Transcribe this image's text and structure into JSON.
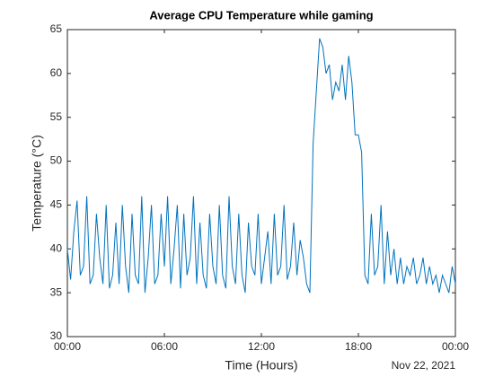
{
  "chart_data": {
    "type": "line",
    "title": "Average CPU Temperature while gaming",
    "xlabel": "Time (Hours)",
    "ylabel": "Temperature (°C)",
    "date_label": "Nov 22, 2021",
    "color": "#0072bd",
    "x": [
      0,
      0.2,
      0.4,
      0.6,
      0.8,
      1,
      1.2,
      1.4,
      1.6,
      1.8,
      2,
      2.2,
      2.4,
      2.6,
      2.8,
      3,
      3.2,
      3.4,
      3.6,
      3.8,
      4,
      4.2,
      4.4,
      4.6,
      4.8,
      5,
      5.2,
      5.4,
      5.6,
      5.8,
      6,
      6.2,
      6.4,
      6.6,
      6.8,
      7,
      7.2,
      7.4,
      7.6,
      7.8,
      8,
      8.2,
      8.4,
      8.6,
      8.8,
      9,
      9.2,
      9.4,
      9.6,
      9.8,
      10,
      10.2,
      10.4,
      10.6,
      10.8,
      11,
      11.2,
      11.4,
      11.6,
      11.8,
      12,
      12.2,
      12.4,
      12.6,
      12.8,
      13,
      13.2,
      13.4,
      13.6,
      13.8,
      14,
      14.2,
      14.4,
      14.6,
      14.8,
      15,
      15.2,
      15.4,
      15.6,
      15.8,
      16,
      16.2,
      16.4,
      16.6,
      16.8,
      17,
      17.2,
      17.4,
      17.6,
      17.8,
      18,
      18.2,
      18.4,
      18.6,
      18.8,
      19,
      19.2,
      19.4,
      19.6,
      19.8,
      20,
      20.2,
      20.4,
      20.6,
      20.8,
      21,
      21.2,
      21.4,
      21.6,
      21.8,
      22,
      22.2,
      22.4,
      22.6,
      22.8,
      23,
      23.2,
      23.4,
      23.6,
      23.8,
      24
    ],
    "values": [
      40,
      36.5,
      42,
      45.5,
      37,
      38,
      46,
      36,
      37,
      44,
      39,
      36,
      45,
      35.5,
      37,
      43,
      36,
      45,
      38,
      35,
      44,
      37,
      36,
      46,
      35,
      39,
      45,
      36,
      37,
      44,
      38,
      46,
      36,
      40,
      45,
      35.5,
      44,
      37,
      39,
      46,
      36,
      43,
      37,
      35.5,
      44,
      38,
      36,
      45,
      37,
      35.5,
      46,
      38,
      36,
      44,
      37,
      35,
      43,
      38,
      37,
      44,
      36,
      39,
      42,
      36,
      44,
      37,
      38,
      45,
      36.5,
      38,
      43,
      37,
      41,
      39,
      36,
      35,
      52,
      58,
      64,
      63,
      60,
      61,
      57,
      59,
      58,
      61,
      57,
      62,
      59,
      53,
      53,
      51,
      37,
      36,
      44,
      37,
      38,
      45,
      36,
      42,
      37,
      40,
      36,
      39,
      36,
      38,
      37,
      39,
      36,
      37,
      39,
      36,
      38,
      36,
      37,
      35,
      37,
      36,
      35,
      38,
      36
    ],
    "xlim": [
      0,
      24
    ],
    "xticks": [
      {
        "value": 0,
        "label": "00:00"
      },
      {
        "value": 6,
        "label": "06:00"
      },
      {
        "value": 12,
        "label": "12:00"
      },
      {
        "value": 18,
        "label": "18:00"
      },
      {
        "value": 24,
        "label": "00:00"
      }
    ],
    "ylim": [
      30,
      65
    ],
    "yticks": [
      30,
      35,
      40,
      45,
      50,
      55,
      60,
      65
    ],
    "grid": false
  }
}
